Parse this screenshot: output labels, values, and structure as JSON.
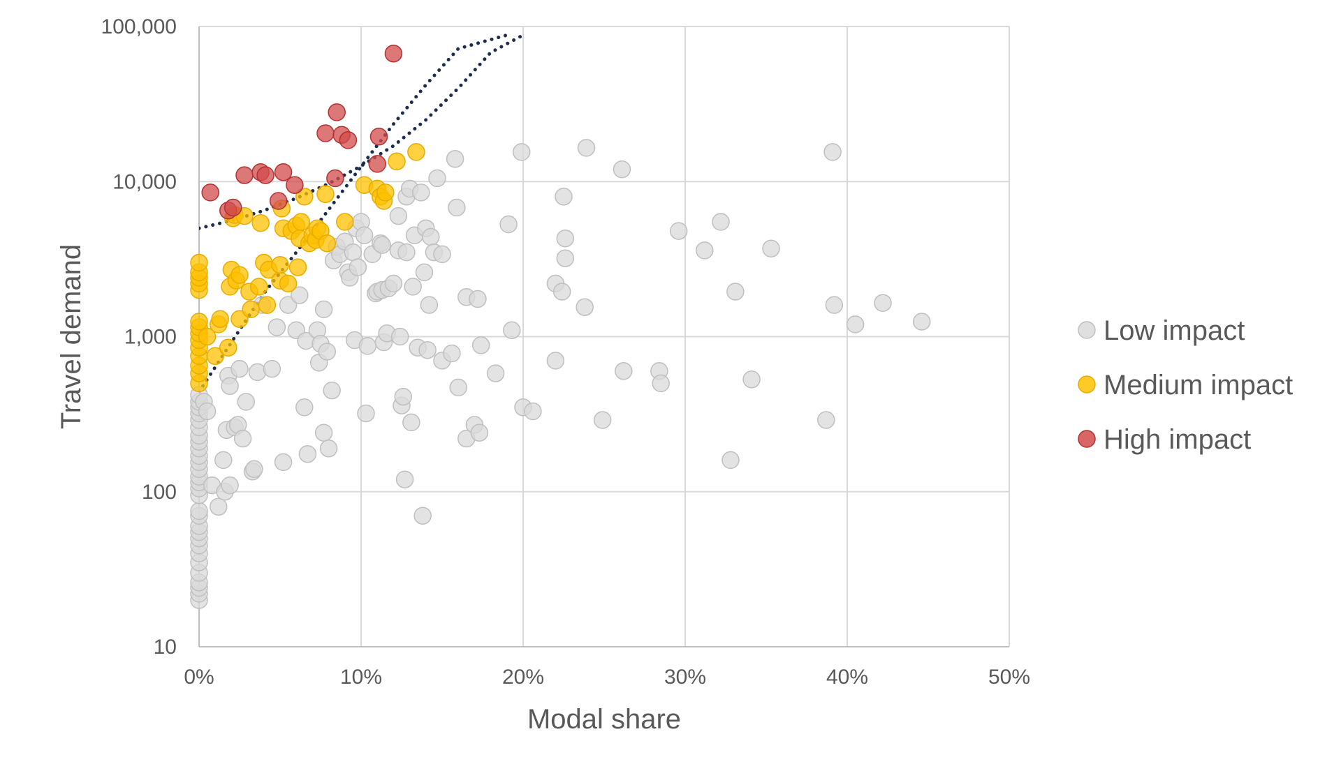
{
  "chart_data": {
    "type": "scatter",
    "title": "",
    "xlabel": "Modal share",
    "ylabel": "Travel demand",
    "x_scale": "linear",
    "y_scale": "log",
    "xlim": [
      0,
      0.5
    ],
    "ylim": [
      10,
      100000
    ],
    "x_ticks": [
      {
        "value": 0,
        "label": "0%"
      },
      {
        "value": 0.1,
        "label": "10%"
      },
      {
        "value": 0.2,
        "label": "20%"
      },
      {
        "value": 0.3,
        "label": "30%"
      },
      {
        "value": 0.4,
        "label": "40%"
      },
      {
        "value": 0.5,
        "label": "50%"
      }
    ],
    "y_ticks": [
      {
        "value": 10,
        "label": "10"
      },
      {
        "value": 100,
        "label": "100"
      },
      {
        "value": 1000,
        "label": "1,000"
      },
      {
        "value": 10000,
        "label": "10,000"
      },
      {
        "value": 100000,
        "label": "100,000"
      }
    ],
    "grid": true,
    "legend_position": "right",
    "series": [
      {
        "name": "Low impact",
        "color": "#d9d9d9",
        "stroke": "#bfbfbf",
        "points": [
          [
            0,
            20
          ],
          [
            0,
            22
          ],
          [
            0,
            24
          ],
          [
            0,
            26
          ],
          [
            0,
            30
          ],
          [
            0,
            35
          ],
          [
            0,
            40
          ],
          [
            0,
            45
          ],
          [
            0,
            50
          ],
          [
            0,
            55
          ],
          [
            0,
            60
          ],
          [
            0,
            70
          ],
          [
            0,
            75
          ],
          [
            0,
            95
          ],
          [
            0,
            105
          ],
          [
            0,
            115
          ],
          [
            0,
            125
          ],
          [
            0,
            140
          ],
          [
            0,
            155
          ],
          [
            0,
            170
          ],
          [
            0,
            190
          ],
          [
            0,
            210
          ],
          [
            0,
            230
          ],
          [
            0,
            260
          ],
          [
            0,
            290
          ],
          [
            0,
            320
          ],
          [
            0,
            350
          ],
          [
            0,
            380
          ],
          [
            0,
            420
          ],
          [
            0.003,
            380
          ],
          [
            0.005,
            330
          ],
          [
            0.008,
            110
          ],
          [
            0.012,
            80
          ],
          [
            0.015,
            160
          ],
          [
            0.016,
            100
          ],
          [
            0.017,
            250
          ],
          [
            0.018,
            560
          ],
          [
            0.019,
            480
          ],
          [
            0.019,
            110
          ],
          [
            0.022,
            260
          ],
          [
            0.024,
            270
          ],
          [
            0.025,
            620
          ],
          [
            0.027,
            220
          ],
          [
            0.029,
            380
          ],
          [
            0.033,
            135
          ],
          [
            0.034,
            140
          ],
          [
            0.036,
            590
          ],
          [
            0.039,
            1600
          ],
          [
            0.045,
            620
          ],
          [
            0.048,
            1150
          ],
          [
            0.052,
            155
          ],
          [
            0.055,
            1600
          ],
          [
            0.06,
            1100
          ],
          [
            0.062,
            1850
          ],
          [
            0.065,
            350
          ],
          [
            0.066,
            940
          ],
          [
            0.067,
            175
          ],
          [
            0.073,
            1100
          ],
          [
            0.074,
            680
          ],
          [
            0.075,
            900
          ],
          [
            0.077,
            1500
          ],
          [
            0.077,
            240
          ],
          [
            0.079,
            800
          ],
          [
            0.08,
            190
          ],
          [
            0.082,
            450
          ],
          [
            0.083,
            3100
          ],
          [
            0.085,
            3800
          ],
          [
            0.087,
            3400
          ],
          [
            0.09,
            4100
          ],
          [
            0.092,
            2600
          ],
          [
            0.093,
            2400
          ],
          [
            0.095,
            3500
          ],
          [
            0.096,
            950
          ],
          [
            0.097,
            5000
          ],
          [
            0.098,
            2800
          ],
          [
            0.1,
            5500
          ],
          [
            0.102,
            4500
          ],
          [
            0.103,
            320
          ],
          [
            0.104,
            870
          ],
          [
            0.107,
            3400
          ],
          [
            0.109,
            1900
          ],
          [
            0.11,
            1950
          ],
          [
            0.112,
            4000
          ],
          [
            0.113,
            3900
          ],
          [
            0.113,
            2000
          ],
          [
            0.114,
            920
          ],
          [
            0.116,
            1050
          ],
          [
            0.117,
            2050
          ],
          [
            0.12,
            2200
          ],
          [
            0.123,
            6000
          ],
          [
            0.123,
            3600
          ],
          [
            0.124,
            1000
          ],
          [
            0.125,
            360
          ],
          [
            0.126,
            410
          ],
          [
            0.127,
            120
          ],
          [
            0.128,
            3500
          ],
          [
            0.128,
            8000
          ],
          [
            0.13,
            9000
          ],
          [
            0.131,
            280
          ],
          [
            0.132,
            2100
          ],
          [
            0.133,
            4500
          ],
          [
            0.135,
            850
          ],
          [
            0.137,
            8500
          ],
          [
            0.138,
            70
          ],
          [
            0.139,
            2600
          ],
          [
            0.14,
            5000
          ],
          [
            0.141,
            820
          ],
          [
            0.142,
            1600
          ],
          [
            0.143,
            4400
          ],
          [
            0.145,
            3500
          ],
          [
            0.147,
            10500
          ],
          [
            0.15,
            3400
          ],
          [
            0.15,
            700
          ],
          [
            0.156,
            780
          ],
          [
            0.158,
            14000
          ],
          [
            0.159,
            6800
          ],
          [
            0.16,
            470
          ],
          [
            0.165,
            1800
          ],
          [
            0.165,
            220
          ],
          [
            0.17,
            270
          ],
          [
            0.172,
            1750
          ],
          [
            0.173,
            240
          ],
          [
            0.174,
            880
          ],
          [
            0.183,
            580
          ],
          [
            0.191,
            5300
          ],
          [
            0.193,
            1100
          ],
          [
            0.199,
            15500
          ],
          [
            0.2,
            350
          ],
          [
            0.206,
            330
          ],
          [
            0.22,
            700
          ],
          [
            0.22,
            2200
          ],
          [
            0.224,
            1950
          ],
          [
            0.225,
            8000
          ],
          [
            0.226,
            4300
          ],
          [
            0.226,
            3200
          ],
          [
            0.238,
            1550
          ],
          [
            0.239,
            16500
          ],
          [
            0.249,
            290
          ],
          [
            0.261,
            12000
          ],
          [
            0.262,
            600
          ],
          [
            0.284,
            600
          ],
          [
            0.285,
            500
          ],
          [
            0.296,
            4800
          ],
          [
            0.312,
            3600
          ],
          [
            0.322,
            5500
          ],
          [
            0.328,
            160
          ],
          [
            0.331,
            1950
          ],
          [
            0.341,
            530
          ],
          [
            0.353,
            3700
          ],
          [
            0.387,
            290
          ],
          [
            0.391,
            15500
          ],
          [
            0.392,
            1600
          ],
          [
            0.405,
            1200
          ],
          [
            0.422,
            1650
          ],
          [
            0.446,
            1250
          ]
        ]
      },
      {
        "name": "Medium impact",
        "color": "#ffc000",
        "stroke": "#e6ac00",
        "points": [
          [
            0,
            500
          ],
          [
            0,
            580
          ],
          [
            0,
            650
          ],
          [
            0,
            750
          ],
          [
            0,
            850
          ],
          [
            0,
            950
          ],
          [
            0,
            1050
          ],
          [
            0,
            1150
          ],
          [
            0,
            1250
          ],
          [
            0,
            2000
          ],
          [
            0,
            2200
          ],
          [
            0,
            2400
          ],
          [
            0,
            2600
          ],
          [
            0,
            3000
          ],
          [
            0.005,
            1000
          ],
          [
            0.01,
            750
          ],
          [
            0.012,
            1200
          ],
          [
            0.013,
            1300
          ],
          [
            0.018,
            850
          ],
          [
            0.019,
            2100
          ],
          [
            0.02,
            2700
          ],
          [
            0.021,
            5800
          ],
          [
            0.022,
            6100
          ],
          [
            0.023,
            2300
          ],
          [
            0.025,
            2500
          ],
          [
            0.025,
            1300
          ],
          [
            0.028,
            6000
          ],
          [
            0.031,
            1950
          ],
          [
            0.032,
            1500
          ],
          [
            0.037,
            2100
          ],
          [
            0.038,
            5400
          ],
          [
            0.04,
            3000
          ],
          [
            0.042,
            1600
          ],
          [
            0.043,
            2700
          ],
          [
            0.05,
            2300
          ],
          [
            0.05,
            2900
          ],
          [
            0.051,
            6700
          ],
          [
            0.052,
            5000
          ],
          [
            0.055,
            2200
          ],
          [
            0.057,
            4800
          ],
          [
            0.06,
            5200
          ],
          [
            0.061,
            2800
          ],
          [
            0.062,
            4300
          ],
          [
            0.063,
            5500
          ],
          [
            0.065,
            8000
          ],
          [
            0.068,
            4000
          ],
          [
            0.07,
            4500
          ],
          [
            0.072,
            4200
          ],
          [
            0.073,
            5000
          ],
          [
            0.075,
            4800
          ],
          [
            0.078,
            8300
          ],
          [
            0.079,
            4000
          ],
          [
            0.09,
            5500
          ],
          [
            0.102,
            9500
          ],
          [
            0.11,
            9000
          ],
          [
            0.112,
            8000
          ],
          [
            0.114,
            7500
          ],
          [
            0.115,
            8500
          ],
          [
            0.122,
            13500
          ],
          [
            0.134,
            15500
          ]
        ]
      },
      {
        "name": "High impact",
        "color": "#d24b4b",
        "stroke": "#b53030",
        "points": [
          [
            0.007,
            8500
          ],
          [
            0.018,
            6500
          ],
          [
            0.021,
            6800
          ],
          [
            0.028,
            11000
          ],
          [
            0.038,
            11500
          ],
          [
            0.041,
            11000
          ],
          [
            0.049,
            7500
          ],
          [
            0.052,
            11500
          ],
          [
            0.059,
            9500
          ],
          [
            0.078,
            20500
          ],
          [
            0.084,
            10500
          ],
          [
            0.085,
            28000
          ],
          [
            0.088,
            20000
          ],
          [
            0.092,
            18500
          ],
          [
            0.11,
            13000
          ],
          [
            0.111,
            19500
          ],
          [
            0.12,
            67000
          ]
        ]
      }
    ],
    "trendlines": [
      {
        "style": "dotted",
        "color": "#1f2d4d",
        "points": [
          [
            0,
            440
          ],
          [
            0.02,
            920
          ],
          [
            0.04,
            1900
          ],
          [
            0.06,
            3500
          ],
          [
            0.08,
            6600
          ],
          [
            0.1,
            12500
          ],
          [
            0.12,
            23500
          ],
          [
            0.14,
            42000
          ],
          [
            0.16,
            72000
          ],
          [
            0.19,
            88000
          ]
        ]
      },
      {
        "style": "dotted",
        "color": "#1f2d4d",
        "points": [
          [
            0,
            5000
          ],
          [
            0.02,
            5600
          ],
          [
            0.04,
            6500
          ],
          [
            0.06,
            7800
          ],
          [
            0.08,
            9700
          ],
          [
            0.1,
            12600
          ],
          [
            0.12,
            17000
          ],
          [
            0.14,
            25000
          ],
          [
            0.16,
            40000
          ],
          [
            0.18,
            68000
          ],
          [
            0.2,
            88000
          ]
        ]
      }
    ]
  }
}
